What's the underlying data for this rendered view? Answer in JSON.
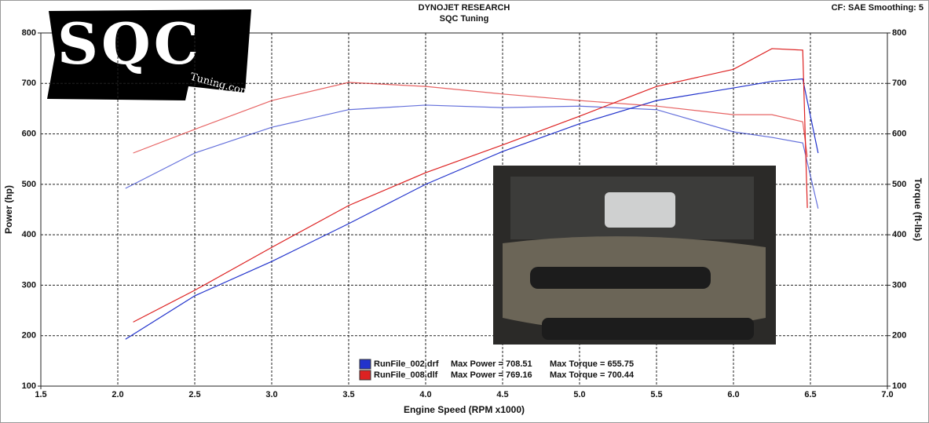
{
  "chart_data": {
    "type": "line",
    "title": "DYNOJET RESEARCH",
    "subtitle": "SQC Tuning",
    "settings_text": "CF: SAE  Smoothing: 5",
    "logo": {
      "main": "SQC",
      "sub": "Tuning.com"
    },
    "x_label": "Engine Speed (RPM x1000)",
    "y_label": "Power (hp)",
    "y2_label": "Torque (ft-lbs)",
    "xlim": [
      1.5,
      7.0
    ],
    "xticks": [
      1.5,
      {
        "value": 2,
        "label": "2.0"
      },
      2.5,
      {
        "value": 3,
        "label": "3.0"
      },
      3.5,
      {
        "value": 4,
        "label": "4.0"
      },
      4.5,
      {
        "value": 5,
        "label": "5.0"
      },
      5.5,
      {
        "value": 6,
        "label": "6.0"
      },
      6.5,
      {
        "value": 7,
        "label": "7.0"
      }
    ],
    "ylim": [
      100,
      800
    ],
    "yticks": [
      100,
      200,
      300,
      400,
      500,
      600,
      700,
      800
    ],
    "y2lim": [
      100,
      800
    ],
    "y2ticks": [
      100,
      200,
      300,
      400,
      500,
      600,
      700,
      800
    ],
    "grid": true,
    "series": [
      {
        "name": "RunFile_002.drf",
        "color": "#2233cc",
        "max_power_text": "Max Power = 708.51",
        "max_torque_text": "Max Torque = 655.75",
        "x": [
          2.05,
          2.5,
          3,
          3.5,
          4,
          4.5,
          5,
          5.5,
          6,
          6.25,
          6.45,
          6.55
        ],
        "power": [
          193,
          279,
          347,
          422,
          500,
          565,
          620,
          666,
          691,
          704,
          709,
          562
        ],
        "torque": [
          492,
          562,
          613,
          648,
          657,
          652,
          655,
          648,
          604,
          593,
          582,
          452
        ]
      },
      {
        "name": "RunFile_008.dlf",
        "color": "#dd2222",
        "max_power_text": "Max Power = 769.16",
        "max_torque_text": "Max Torque = 700.44",
        "x": [
          2.1,
          2.5,
          3,
          3.5,
          4,
          4.5,
          5,
          5.5,
          6,
          6.25,
          6.45,
          6.48
        ],
        "power": [
          227,
          290,
          375,
          458,
          523,
          578,
          635,
          694,
          728,
          769,
          766,
          453
        ],
        "torque": [
          562,
          609,
          666,
          702,
          694,
          679,
          666,
          655,
          638,
          638,
          624,
          554
        ]
      }
    ]
  }
}
